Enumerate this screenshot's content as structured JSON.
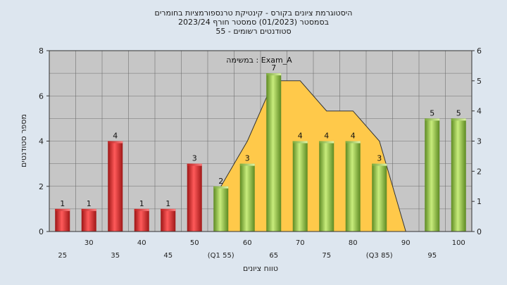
{
  "chart_data": {
    "type": "bar",
    "title_lines": [
      "היסטוגרמת ציונים בקורס - קינטיקת טרנספורמציות בחומרים",
      "בסמסטר  (01/2023)  סמסטר חורף  2023/24",
      "סטודנטים רשומים - 55"
    ],
    "annotation": "במשימה : Exam_A",
    "xlabel": "טווח ציונים",
    "ylabel": "מספר סטודנטים",
    "ylim": [
      0,
      8
    ],
    "y2lim": [
      0,
      6
    ],
    "y_ticks": [
      0,
      2,
      4,
      6,
      8
    ],
    "y2_ticks": [
      0,
      1,
      2,
      3,
      4,
      5,
      6
    ],
    "grid": true,
    "categories": [
      25,
      30,
      35,
      40,
      45,
      50,
      55,
      60,
      65,
      70,
      75,
      80,
      85,
      90,
      95,
      100
    ],
    "x_tick_labels": [
      "25",
      "30",
      "35",
      "40",
      "45",
      "50",
      "(Q1 55)",
      "60",
      "65",
      "70",
      "75",
      "80",
      "(Q3 85)",
      "90",
      "95",
      "100"
    ],
    "values": [
      1,
      1,
      4,
      1,
      1,
      3,
      2,
      3,
      7,
      4,
      4,
      4,
      3,
      0,
      5,
      5
    ],
    "data_labels": [
      "1",
      "1",
      "4",
      "1",
      "1",
      "3",
      "2",
      "3",
      "7",
      "4",
      "4",
      "4",
      "3",
      "",
      "5",
      "5"
    ],
    "bar_colors": [
      "red",
      "red",
      "red",
      "red",
      "red",
      "red",
      "green",
      "green",
      "green",
      "green",
      "green",
      "green",
      "green",
      "green",
      "green",
      "green"
    ],
    "area": {
      "x": [
        55,
        60,
        65,
        70,
        75,
        80,
        85,
        90
      ],
      "values": [
        1.5,
        3,
        5,
        5,
        4,
        4,
        3,
        0
      ]
    },
    "colors": {
      "red": "#e53030",
      "green": "#8cc63f",
      "area": "#ffc94a",
      "plot_bg": "#c6c6c6",
      "page_bg": "#dde6ef"
    }
  }
}
